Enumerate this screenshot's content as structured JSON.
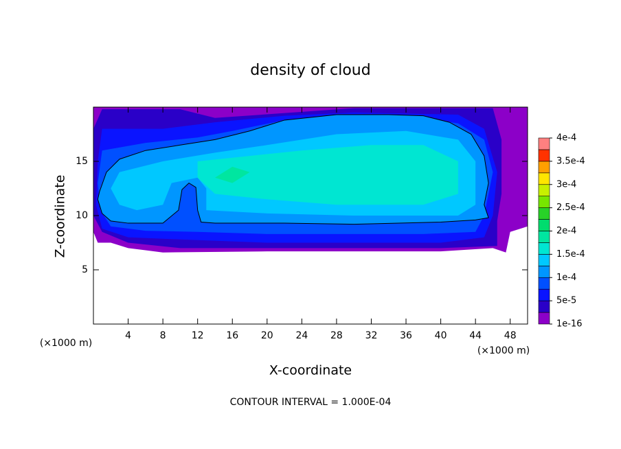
{
  "chart_data": {
    "type": "contour",
    "title": "density of cloud",
    "x_label": "X-coordinate",
    "y_label": "Z-coordinate",
    "x_unit": "(×1000 m)",
    "y_unit": "(×1000 m)",
    "annotation": "CONTOUR INTERVAL = 1.000E-04",
    "xlim": [
      0,
      50
    ],
    "ylim": [
      0,
      20
    ],
    "xticks": [
      4,
      8,
      12,
      16,
      20,
      24,
      28,
      32,
      36,
      40,
      44,
      48
    ],
    "yticks": [
      5,
      10,
      15
    ],
    "levels": [
      1e-16,
      2.5e-05,
      5e-05,
      7.5e-05,
      0.0001,
      0.000125,
      0.00015,
      0.000175,
      0.0002,
      0.000225,
      0.00025,
      0.000275,
      0.0003,
      0.000325,
      0.00035,
      0.000375,
      0.0004
    ],
    "colors": [
      "#8c00c8",
      "#2a00c8",
      "#0a14ff",
      "#0050ff",
      "#0096ff",
      "#00c8ff",
      "#00e6d2",
      "#00e6a0",
      "#00dc6e",
      "#28d228",
      "#78e600",
      "#c8f000",
      "#ffe600",
      "#ffa000",
      "#ff3200",
      "#ff8080"
    ],
    "colorbar_ticks": [
      {
        "value": 1e-16,
        "label": "1e-16"
      },
      {
        "value": 5e-05,
        "label": "5e-5"
      },
      {
        "value": 0.0001,
        "label": "1e-4"
      },
      {
        "value": 0.00015,
        "label": "1.5e-4"
      },
      {
        "value": 0.0002,
        "label": "2e-4"
      },
      {
        "value": 0.00025,
        "label": "2.5e-4"
      },
      {
        "value": 0.0003,
        "label": "3e-4"
      },
      {
        "value": 0.00035,
        "label": "3.5e-4"
      },
      {
        "value": 0.0004,
        "label": "4e-4"
      }
    ],
    "contour_lines": [
      0.0001
    ],
    "fills": [
      {
        "level": 1e-16,
        "points": [
          [
            0,
            20
          ],
          [
            50,
            20
          ],
          [
            50,
            9
          ],
          [
            48,
            8.5
          ],
          [
            47.5,
            6.6
          ],
          [
            46,
            7
          ],
          [
            40,
            6.7
          ],
          [
            20,
            6.7
          ],
          [
            8,
            6.6
          ],
          [
            6,
            6.8
          ],
          [
            4,
            7
          ],
          [
            2,
            7.5
          ],
          [
            0.5,
            7.5
          ],
          [
            0,
            8.5
          ]
        ]
      },
      {
        "level": 2.5e-05,
        "points": [
          [
            1,
            19.8
          ],
          [
            10,
            19.8
          ],
          [
            14,
            19
          ],
          [
            30,
            19.9
          ],
          [
            46,
            19.9
          ],
          [
            47,
            17
          ],
          [
            47,
            12
          ],
          [
            46.5,
            9.5
          ],
          [
            46.5,
            7.2
          ],
          [
            40,
            7
          ],
          [
            20,
            7
          ],
          [
            10,
            7
          ],
          [
            4,
            7.5
          ],
          [
            1,
            8.5
          ],
          [
            0,
            10
          ],
          [
            0,
            18
          ]
        ]
      },
      {
        "level": 5e-05,
        "points": [
          [
            1,
            18
          ],
          [
            8,
            18
          ],
          [
            14,
            18.6
          ],
          [
            22,
            19.2
          ],
          [
            30,
            19.5
          ],
          [
            42,
            19.3
          ],
          [
            45,
            18
          ],
          [
            46.5,
            14
          ],
          [
            46,
            10
          ],
          [
            45,
            8
          ],
          [
            40,
            7.5
          ],
          [
            20,
            7.5
          ],
          [
            10,
            7.8
          ],
          [
            4,
            8
          ],
          [
            1,
            8.8
          ],
          [
            0.3,
            11
          ],
          [
            0.5,
            15
          ]
        ]
      },
      {
        "level": 7.5e-05,
        "points": [
          [
            1,
            16
          ],
          [
            6,
            16.7
          ],
          [
            12,
            17.2
          ],
          [
            16,
            17.8
          ],
          [
            22,
            18.8
          ],
          [
            28,
            19.2
          ],
          [
            36,
            19.2
          ],
          [
            42,
            18.5
          ],
          [
            45,
            17
          ],
          [
            46,
            14
          ],
          [
            45,
            10
          ],
          [
            44,
            8.5
          ],
          [
            38,
            8.3
          ],
          [
            20,
            8.3
          ],
          [
            12,
            8.5
          ],
          [
            6,
            8.6
          ],
          [
            2,
            9
          ],
          [
            0.8,
            10.5
          ],
          [
            0.5,
            13
          ]
        ]
      },
      {
        "level": 0.0001,
        "points": [
          [
            0.7,
            12.2
          ],
          [
            1.5,
            14
          ],
          [
            3,
            15.2
          ],
          [
            6,
            16
          ],
          [
            10,
            16.5
          ],
          [
            14,
            17
          ],
          [
            18,
            17.8
          ],
          [
            22,
            18.8
          ],
          [
            28,
            19.3
          ],
          [
            34,
            19.3
          ],
          [
            38,
            19.2
          ],
          [
            41,
            18.6
          ],
          [
            43.5,
            17.5
          ],
          [
            45,
            15.5
          ],
          [
            45.5,
            13
          ],
          [
            45,
            11
          ],
          [
            45.5,
            9.8
          ],
          [
            44,
            9.6
          ],
          [
            40,
            9.4
          ],
          [
            30,
            9.2
          ],
          [
            22,
            9.3
          ],
          [
            14,
            9.3
          ],
          [
            12.4,
            9.4
          ],
          [
            12,
            10.5
          ],
          [
            11.8,
            12.6
          ],
          [
            11,
            13
          ],
          [
            10.2,
            12.4
          ],
          [
            9.8,
            10.5
          ],
          [
            8,
            9.3
          ],
          [
            4,
            9.3
          ],
          [
            2,
            9.5
          ],
          [
            1,
            10.2
          ],
          [
            0.5,
            11.5
          ]
        ]
      },
      {
        "level": 0.000125,
        "points": [
          [
            3,
            14
          ],
          [
            8,
            15
          ],
          [
            14,
            15.8
          ],
          [
            20,
            16.5
          ],
          [
            28,
            17.5
          ],
          [
            36,
            17.8
          ],
          [
            42,
            17
          ],
          [
            44,
            15
          ],
          [
            44,
            11
          ],
          [
            42,
            10
          ],
          [
            30,
            10
          ],
          [
            20,
            10.2
          ],
          [
            13,
            10.5
          ],
          [
            13,
            12.5
          ],
          [
            12,
            13.5
          ],
          [
            9,
            13
          ],
          [
            8,
            11
          ],
          [
            5,
            10.5
          ],
          [
            3,
            11
          ],
          [
            2,
            12.5
          ]
        ]
      },
      {
        "level": 0.00015,
        "points": [
          [
            12,
            15
          ],
          [
            18,
            15.5
          ],
          [
            24,
            16
          ],
          [
            32,
            16.5
          ],
          [
            38,
            16.5
          ],
          [
            42,
            15
          ],
          [
            42,
            12
          ],
          [
            38,
            11
          ],
          [
            28,
            11
          ],
          [
            20,
            11.5
          ],
          [
            14,
            12
          ],
          [
            12,
            13.5
          ]
        ]
      },
      {
        "level": 0.000175,
        "points": [
          [
            14,
            13.5
          ],
          [
            16,
            14.5
          ],
          [
            18,
            14
          ],
          [
            16,
            13
          ]
        ]
      }
    ]
  }
}
